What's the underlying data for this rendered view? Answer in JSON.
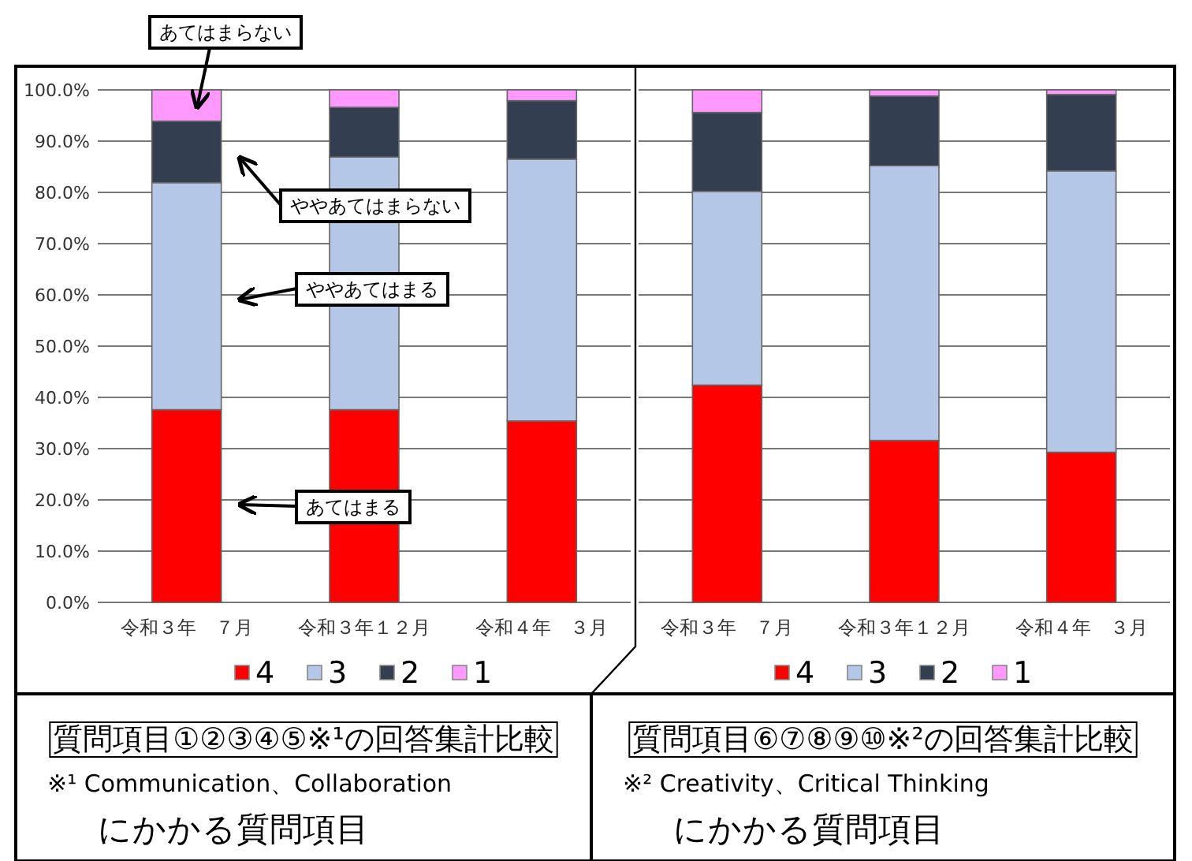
{
  "chart_data": [
    {
      "type": "bar",
      "stacked": true,
      "title": "質問項目①②③④⑤※¹の回答集計比較",
      "categories": [
        "令和３年　７月",
        "令和３年１２月",
        "令和４年　３月"
      ],
      "series": [
        {
          "name": "4",
          "color": "#ff0000",
          "values": [
            37.6,
            37.6,
            35.4
          ]
        },
        {
          "name": "3",
          "color": "#b4c7e7",
          "values": [
            44.3,
            49.3,
            51.1
          ]
        },
        {
          "name": "2",
          "color": "#333f50",
          "values": [
            12.0,
            9.7,
            11.4
          ]
        },
        {
          "name": "1",
          "color": "#ff99ff",
          "values": [
            6.1,
            3.4,
            2.1
          ]
        }
      ],
      "ylim": [
        0,
        100
      ],
      "yticks": [
        {
          "value": 0,
          "label": "0.0%"
        },
        {
          "value": 10,
          "label": "10.0%"
        },
        {
          "value": 20,
          "label": "20.0%"
        },
        {
          "value": 30,
          "label": "30.0%"
        },
        {
          "value": 40,
          "label": "40.0%"
        },
        {
          "value": 50,
          "label": "50.0%"
        },
        {
          "value": 60,
          "label": "60.0%"
        },
        {
          "value": 70,
          "label": "70.0%"
        },
        {
          "value": 80,
          "label": "80.0%"
        },
        {
          "value": 90,
          "label": "90.0%"
        },
        {
          "value": 100,
          "label": "100.0%"
        }
      ],
      "grid": "y",
      "legend": "bottom",
      "annotations": [
        "あてはまらない",
        "ややあてはまらない",
        "ややあてはまる",
        "あてはまる",
        "※¹ Communication、Collaboration",
        "にかかる質問項目"
      ]
    },
    {
      "type": "bar",
      "stacked": true,
      "title": "質問項目⑥⑦⑧⑨⑩※²の回答集計比較",
      "categories": [
        "令和３年　７月",
        "令和３年１２月",
        "令和４年　３月"
      ],
      "series": [
        {
          "name": "4",
          "color": "#ff0000",
          "values": [
            42.4,
            31.6,
            29.3
          ]
        },
        {
          "name": "3",
          "color": "#b4c7e7",
          "values": [
            37.8,
            53.6,
            54.9
          ]
        },
        {
          "name": "2",
          "color": "#333f50",
          "values": [
            15.4,
            13.6,
            14.9
          ]
        },
        {
          "name": "1",
          "color": "#ff99ff",
          "values": [
            4.4,
            1.2,
            0.9
          ]
        }
      ],
      "ylim": [
        0,
        100
      ],
      "yticks": [
        {
          "value": 0,
          "label": null
        },
        {
          "value": 10,
          "label": null
        },
        {
          "value": 20,
          "label": null
        },
        {
          "value": 30,
          "label": null
        },
        {
          "value": 40,
          "label": null
        },
        {
          "value": 50,
          "label": null
        },
        {
          "value": 60,
          "label": null
        },
        {
          "value": 70,
          "label": null
        },
        {
          "value": 80,
          "label": null
        },
        {
          "value": 90,
          "label": null
        },
        {
          "value": 100,
          "label": null
        }
      ],
      "tick_labels": "x",
      "grid": "y",
      "legend": "bottom",
      "annotations": [
        "※² Creativity、Critical Thinking",
        "にかかる質問項目"
      ]
    }
  ]
}
